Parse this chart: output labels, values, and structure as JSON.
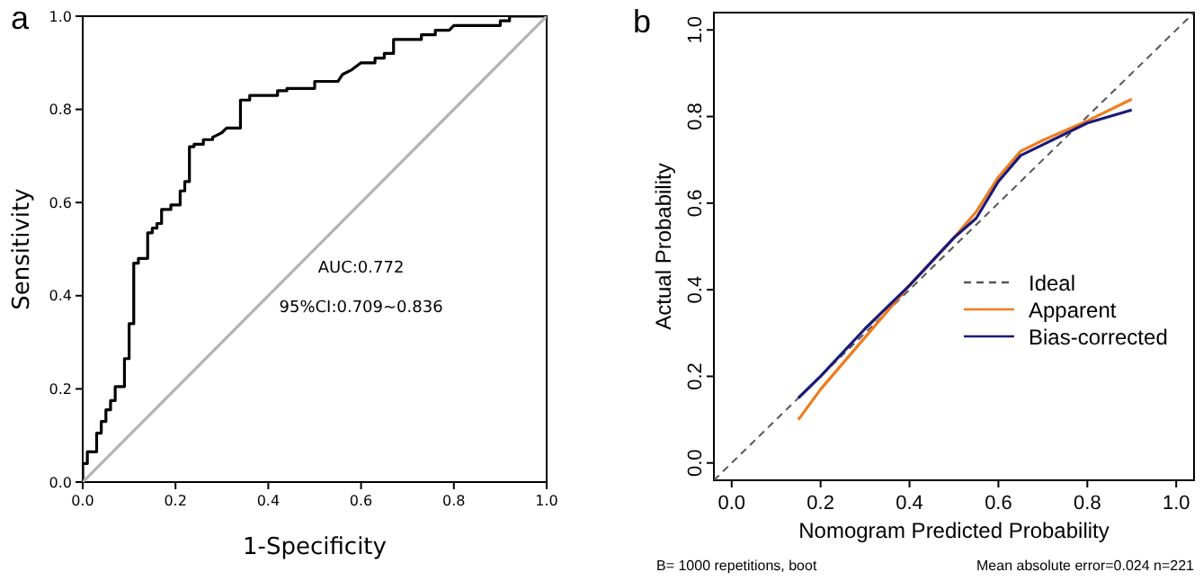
{
  "chart_data": [
    {
      "type": "line",
      "title": "a",
      "xlabel": "1-Specificity",
      "ylabel": "Sensitivity",
      "xlim": [
        0,
        1
      ],
      "ylim": [
        0,
        1
      ],
      "xticks": [
        {
          "value": 0,
          "label": "0.0"
        },
        {
          "value": 0.2,
          "label": "0.2"
        },
        {
          "value": 0.4,
          "label": "0.4"
        },
        {
          "value": 0.6,
          "label": "0.6"
        },
        {
          "value": 0.8,
          "label": "0.8"
        },
        {
          "value": 1,
          "label": "1.0"
        }
      ],
      "yticks": [
        {
          "value": 0,
          "label": "0.0"
        },
        {
          "value": 0.2,
          "label": "0.2"
        },
        {
          "value": 0.4,
          "label": "0.4"
        },
        {
          "value": 0.6,
          "label": "0.6"
        },
        {
          "value": 0.8,
          "label": "0.8"
        },
        {
          "value": 1,
          "label": "1.0"
        }
      ],
      "grid": false,
      "legend": false,
      "annotations": [
        "AUC:0.772",
        "95%CI:0.709~0.836"
      ],
      "series": [
        {
          "color": "#000000",
          "line_style": "solid",
          "x": [
            0,
            0,
            0.01,
            0.01,
            0.03,
            0.03,
            0.04,
            0.04,
            0.05,
            0.05,
            0.06,
            0.06,
            0.07,
            0.07,
            0.09,
            0.09,
            0.1,
            0.1,
            0.11,
            0.11,
            0.12,
            0.12,
            0.14,
            0.14,
            0.15,
            0.15,
            0.16,
            0.16,
            0.17,
            0.17,
            0.19,
            0.19,
            0.21,
            0.21,
            0.22,
            0.22,
            0.23,
            0.23,
            0.24,
            0.24,
            0.26,
            0.26,
            0.28,
            0.28,
            0.29,
            0.3,
            0.31,
            0.34,
            0.34,
            0.36,
            0.36,
            0.42,
            0.42,
            0.44,
            0.44,
            0.5,
            0.5,
            0.55,
            0.56,
            0.58,
            0.6,
            0.63,
            0.63,
            0.65,
            0.65,
            0.67,
            0.67,
            0.73,
            0.73,
            0.76,
            0.76,
            0.79,
            0.8,
            0.9,
            0.9,
            0.92,
            0.92,
            1
          ],
          "values": [
            0,
            0.04,
            0.04,
            0.065,
            0.065,
            0.105,
            0.105,
            0.13,
            0.13,
            0.155,
            0.155,
            0.175,
            0.175,
            0.205,
            0.205,
            0.265,
            0.265,
            0.34,
            0.34,
            0.47,
            0.47,
            0.48,
            0.48,
            0.535,
            0.535,
            0.545,
            0.545,
            0.555,
            0.555,
            0.585,
            0.585,
            0.595,
            0.595,
            0.625,
            0.625,
            0.645,
            0.645,
            0.72,
            0.72,
            0.725,
            0.725,
            0.735,
            0.735,
            0.74,
            0.745,
            0.75,
            0.76,
            0.76,
            0.82,
            0.82,
            0.83,
            0.83,
            0.84,
            0.84,
            0.845,
            0.845,
            0.86,
            0.86,
            0.875,
            0.885,
            0.9,
            0.9,
            0.91,
            0.91,
            0.92,
            0.92,
            0.95,
            0.95,
            0.96,
            0.96,
            0.97,
            0.97,
            0.98,
            0.98,
            0.99,
            0.99,
            1,
            1
          ]
        },
        {
          "color": "#b4b4b4",
          "line_style": "solid",
          "x": [
            0,
            1
          ],
          "values": [
            0,
            1
          ]
        }
      ]
    },
    {
      "type": "line",
      "title": "b",
      "xlabel": "Nomogram Predicted Probability",
      "ylabel": "Actual Probability",
      "xlim": [
        -0.04,
        1.04
      ],
      "ylim": [
        -0.04,
        1.04
      ],
      "xticks": [
        {
          "value": 0,
          "label": "0.0"
        },
        {
          "value": 0.2,
          "label": "0.2"
        },
        {
          "value": 0.4,
          "label": "0.4"
        },
        {
          "value": 0.6,
          "label": "0.6"
        },
        {
          "value": 0.8,
          "label": "0.8"
        },
        {
          "value": 1,
          "label": "1.0"
        }
      ],
      "yticks": [
        {
          "value": 0,
          "label": "0.0"
        },
        {
          "value": 0.2,
          "label": "0.2"
        },
        {
          "value": 0.4,
          "label": "0.4"
        },
        {
          "value": 0.6,
          "label": "0.6"
        },
        {
          "value": 0.8,
          "label": "0.8"
        },
        {
          "value": 1,
          "label": "1.0"
        }
      ],
      "grid": false,
      "legend": "bottom right",
      "annotations": [
        "B= 1000 repetitions, boot",
        "Mean absolute error=0.024 n=221"
      ],
      "series": [
        {
          "name": "Ideal",
          "color": "#555555",
          "line_style": "dashed",
          "x": [
            -0.04,
            1.04
          ],
          "values": [
            -0.04,
            1.04
          ]
        },
        {
          "name": "Apparent",
          "color": "#f07c1e",
          "line_style": "solid",
          "x": [
            0.15,
            0.2,
            0.3,
            0.4,
            0.5,
            0.55,
            0.6,
            0.65,
            0.7,
            0.8,
            0.9
          ],
          "values": [
            0.1,
            0.17,
            0.29,
            0.41,
            0.52,
            0.58,
            0.66,
            0.72,
            0.745,
            0.79,
            0.84
          ]
        },
        {
          "name": "Bias-corrected",
          "color": "#1a1a78",
          "line_style": "solid",
          "x": [
            0.15,
            0.2,
            0.3,
            0.4,
            0.5,
            0.55,
            0.6,
            0.65,
            0.7,
            0.8,
            0.9
          ],
          "values": [
            0.15,
            0.2,
            0.31,
            0.41,
            0.52,
            0.565,
            0.65,
            0.71,
            0.735,
            0.785,
            0.815
          ]
        }
      ]
    }
  ]
}
